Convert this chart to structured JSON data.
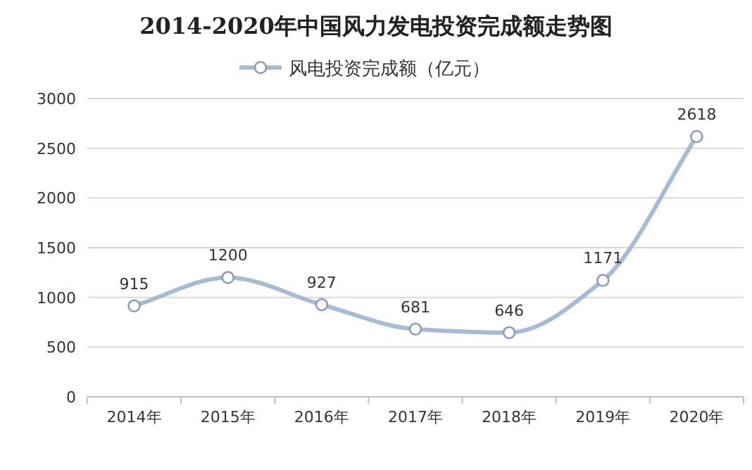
{
  "chart_data": {
    "type": "line",
    "title": "2014-2020年中国风力发电投资完成额走势图",
    "categories": [
      "2014年",
      "2015年",
      "2016年",
      "2017年",
      "2018年",
      "2019年",
      "2020年"
    ],
    "series": [
      {
        "name": "风电投资完成额（亿元）",
        "color": "#a9bad3",
        "values": [
          915,
          1200,
          927,
          681,
          646,
          1171,
          2618
        ]
      }
    ],
    "ylim": [
      0,
      3000
    ],
    "yticks": [
      0,
      500,
      1000,
      1500,
      2000,
      2500,
      3000
    ],
    "grid": "y",
    "legend": "top",
    "marker": "circle",
    "data_labels": true
  }
}
